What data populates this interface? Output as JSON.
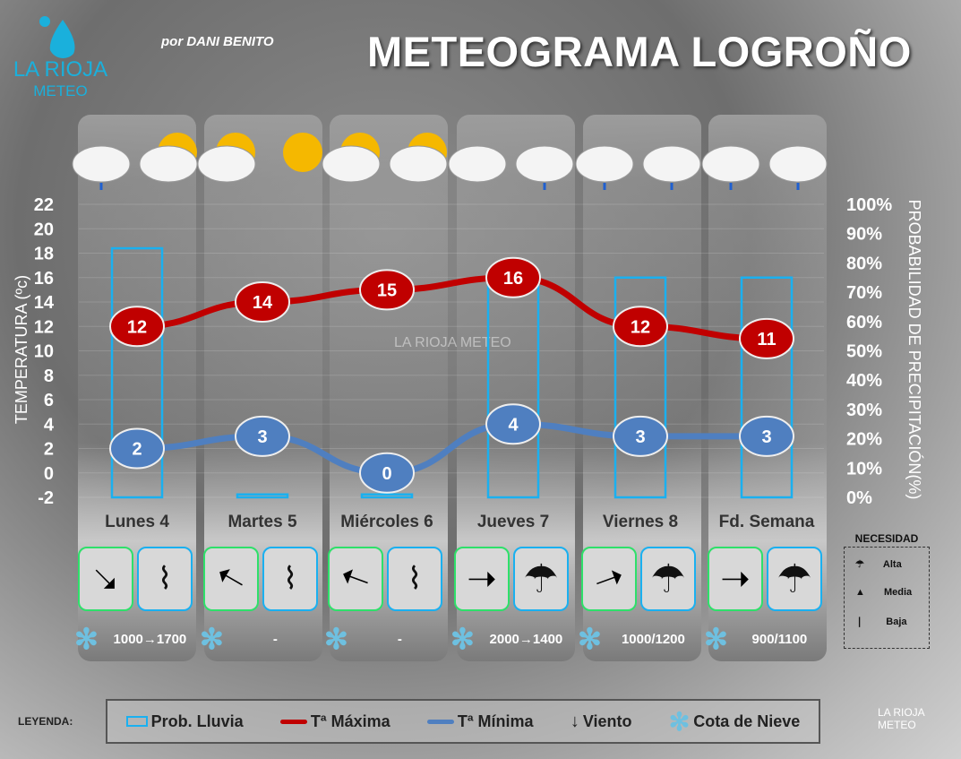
{
  "header": {
    "title": "METEOGRAMA LOGROÑO",
    "author": "por DANI BENITO",
    "logo_line1": "LA RIOJA",
    "logo_line2": "METEO"
  },
  "watermark": "LA RIOJA METEO",
  "chart_data": {
    "type": "bar+line",
    "categories": [
      "Lunes 4",
      "Martes 5",
      "Miércoles 6",
      "Jueves 7",
      "Viernes 8",
      "Fd. Semana"
    ],
    "ylabel": "TEMPERATURA (ºc)",
    "y2label": "PROBABILIDAD DE PRECIPITACIÓN(%)",
    "ylim": [
      -2,
      22
    ],
    "yticks": [
      22,
      20,
      18,
      16,
      14,
      12,
      10,
      8,
      6,
      4,
      2,
      0,
      -2
    ],
    "y2lim": [
      0,
      100
    ],
    "y2ticks": [
      "100%",
      "90%",
      "80%",
      "70%",
      "60%",
      "50%",
      "40%",
      "30%",
      "20%",
      "10%",
      "0%"
    ],
    "series": [
      {
        "name": "Prob. Lluvia",
        "type": "bar",
        "axis": "right",
        "values": [
          85,
          1,
          1,
          75,
          75,
          75
        ],
        "color": "#1ab0f0"
      },
      {
        "name": "Tª Máxima",
        "type": "line",
        "values": [
          12,
          14,
          15,
          16,
          12,
          11
        ],
        "color": "#c00000"
      },
      {
        "name": "Tª Mínima",
        "type": "line",
        "values": [
          2,
          3,
          0,
          4,
          3,
          3
        ],
        "color": "#4f7fc0"
      }
    ],
    "grid": true
  },
  "days": [
    {
      "wind": "south-east",
      "umbrella": "Media",
      "cota": "1000→1700",
      "icons": [
        "cloud-rain",
        "sun-cloud"
      ]
    },
    {
      "wind": "north-west",
      "umbrella": "Media",
      "cota": "-",
      "icons": [
        "sun-cloud",
        "sun-wind"
      ]
    },
    {
      "wind": "west-north-west",
      "umbrella": "Media",
      "cota": "-",
      "icons": [
        "sun-cloud",
        "sun-cloud"
      ]
    },
    {
      "wind": "east",
      "umbrella": "Alta",
      "cota": "2000→1400",
      "icons": [
        "cloud",
        "cloud-rain"
      ]
    },
    {
      "wind": "east-north-east",
      "umbrella": "Alta",
      "cota": "1000/1200",
      "icons": [
        "cloud-rain",
        "cloud-rain"
      ]
    },
    {
      "wind": "east",
      "umbrella": "Alta",
      "cota": "900/1100",
      "icons": [
        "cloud-rain",
        "cloud-rain"
      ]
    }
  ],
  "necesidad": {
    "title": "NECESIDAD",
    "items": [
      "Alta",
      "Media",
      "Baja"
    ]
  },
  "legend": {
    "title": "LEYENDA:",
    "items": [
      "Prob. Lluvia",
      "Tª Máxima",
      "Tª Mínima",
      "Viento",
      "Cota de Nieve"
    ]
  }
}
